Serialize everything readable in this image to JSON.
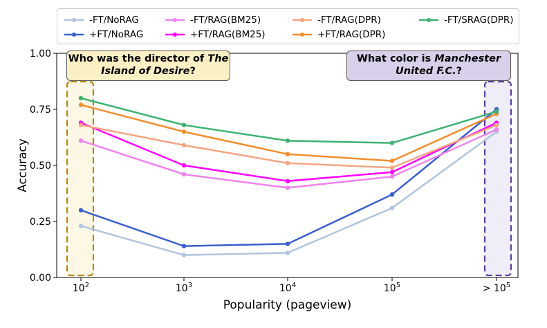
{
  "chart_data": {
    "type": "line",
    "categories": [
      "10^2",
      "10^3",
      "10^4",
      "10^5",
      "> 10^5"
    ],
    "xlabel": "Popularity (pageview)",
    "ylabel": "Accuracy",
    "ylim": [
      0.0,
      1.0
    ],
    "yticks": [
      "0.00",
      "0.25",
      "0.50",
      "0.75",
      "1.00"
    ],
    "legend_position": "top",
    "series": [
      {
        "name": "-FT/NoRAG",
        "color": "#b0c4de",
        "values": [
          0.23,
          0.1,
          0.11,
          0.31,
          0.65
        ]
      },
      {
        "name": "+FT/NoRAG",
        "color": "#3a5fcd",
        "values": [
          0.3,
          0.14,
          0.15,
          0.37,
          0.75
        ]
      },
      {
        "name": "-FT/RAG(BM25)",
        "color": "#ee82ee",
        "values": [
          0.61,
          0.46,
          0.4,
          0.45,
          0.66
        ]
      },
      {
        "name": "+FT/RAG(BM25)",
        "color": "#ff00ff",
        "values": [
          0.69,
          0.5,
          0.43,
          0.47,
          0.69
        ]
      },
      {
        "name": "-FT/RAG(DPR)",
        "color": "#f4a582",
        "values": [
          0.68,
          0.59,
          0.51,
          0.49,
          0.68
        ]
      },
      {
        "name": "+FT/RAG(DPR)",
        "color": "#f28e2b",
        "values": [
          0.77,
          0.65,
          0.55,
          0.52,
          0.73
        ]
      },
      {
        "name": "-FT/SRAG(DPR)",
        "color": "#3cb371",
        "values": [
          0.8,
          0.68,
          0.61,
          0.6,
          0.74
        ]
      }
    ]
  },
  "annotations": {
    "left": {
      "prefix": "Who was the director of ",
      "italic": "The Island of Desire",
      "suffix": "?"
    },
    "right": {
      "prefix": "What color is ",
      "italic": "Manchester United F.C.",
      "suffix": "?"
    }
  },
  "colors": {
    "left_highlight_border": "#b8860b",
    "left_highlight_fill": "#fdf7e6",
    "right_highlight_border": "#5b3fa0",
    "right_highlight_fill": "#efedf8"
  }
}
